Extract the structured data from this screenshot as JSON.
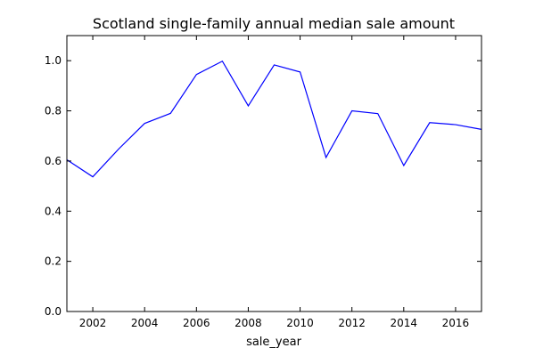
{
  "chart_data": {
    "type": "line",
    "title": "Scotland single-family annual median sale amount",
    "xlabel": "sale_year",
    "ylabel": "",
    "xlim": [
      2001,
      2017
    ],
    "ylim": [
      0.0,
      1.1
    ],
    "x_ticks": [
      2002,
      2004,
      2006,
      2008,
      2010,
      2012,
      2014,
      2016
    ],
    "y_ticks": [
      0.0,
      0.2,
      0.4,
      0.6,
      0.8,
      1.0
    ],
    "x_tick_labels": [
      "2002",
      "2004",
      "2006",
      "2008",
      "2010",
      "2012",
      "2014",
      "2016"
    ],
    "y_tick_labels": [
      "0.0",
      "0.2",
      "0.4",
      "0.6",
      "0.8",
      "1.0"
    ],
    "grid": false,
    "series": [
      {
        "color": "#0000ff",
        "x": [
          2001,
          2002,
          2003,
          2004,
          2005,
          2006,
          2007,
          2008,
          2009,
          2010,
          2011,
          2012,
          2013,
          2014,
          2015,
          2016,
          2017
        ],
        "y": [
          0.605,
          0.537,
          0.648,
          0.75,
          0.79,
          0.945,
          0.998,
          0.82,
          0.983,
          0.955,
          0.614,
          0.8,
          0.789,
          0.582,
          0.753,
          0.745,
          0.726
        ]
      }
    ]
  }
}
